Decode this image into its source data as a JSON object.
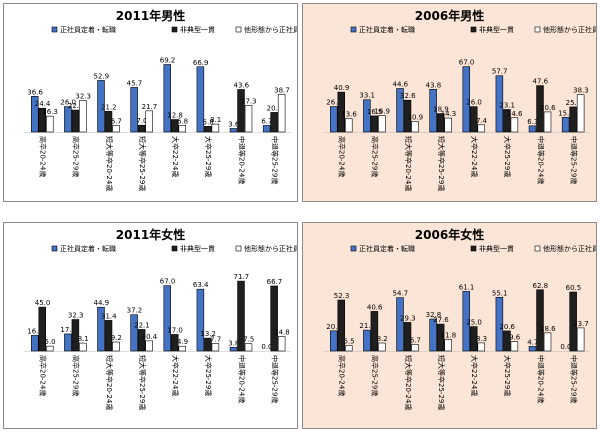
{
  "colors": {
    "series1": "#4472c4",
    "series2": "#1f1f1f",
    "series3": "#ffffff",
    "bar_stroke": "#000000",
    "peach_bg": "#fbe5d6",
    "white_bg": "#ffffff"
  },
  "series_names": [
    "正社員定着・転職",
    "非典型一貫",
    "他形態から正社員"
  ],
  "chart_data": [
    {
      "type": "bar",
      "title": "2011年男性",
      "categories": [
        "高卒20-24歳",
        "高卒25-29歳",
        "短大等卒20-24歳",
        "短大等卒25-29歳",
        "大卒22-24歳",
        "大卒25-29歳",
        "中退等20-24歳",
        "中退等25-29歳"
      ],
      "series": [
        {
          "name": "正社員定着・転職",
          "values": [
            36.6,
            26.0,
            52.9,
            45.7,
            69.2,
            66.9,
            3.6,
            6.7
          ]
        },
        {
          "name": "非典型一貫",
          "values": [
            24.4,
            22.5,
            21.2,
            7.0,
            12.8,
            5.8,
            43.6,
            20.1
          ]
        },
        {
          "name": "他形態から正社員",
          "values": [
            16.3,
            32.3,
            6.7,
            21.7,
            6.8,
            8.1,
            27.3,
            38.7
          ]
        }
      ],
      "ylim": [
        0,
        80
      ],
      "background": "white"
    },
    {
      "type": "bar",
      "title": "2006年男性",
      "categories": [
        "高卒20-24歳",
        "高卒25-29歳",
        "短大等卒20-24歳",
        "短大等卒25-29歳",
        "大卒22-24歳",
        "大卒25-29歳",
        "中退等20-24歳",
        "中退等25-29歳"
      ],
      "series": [
        {
          "name": "正社員定着・転職",
          "values": [
            26.1,
            33.1,
            44.6,
            43.8,
            67.0,
            57.7,
            6.3,
            15.0
          ]
        },
        {
          "name": "非典型一貫",
          "values": [
            40.9,
            16.5,
            32.6,
            18.9,
            26.0,
            23.1,
            47.6,
            25.7
          ]
        },
        {
          "name": "他形態から正社員",
          "values": [
            13.6,
            16.9,
            10.9,
            14.3,
            7.4,
            14.6,
            20.6,
            38.3
          ]
        }
      ],
      "ylim": [
        0,
        80
      ],
      "background": "peach"
    },
    {
      "type": "bar",
      "title": "2011年女性",
      "categories": [
        "高卒20-24歳",
        "高卒25-29歳",
        "短大等卒20-24歳",
        "短大等卒25-29歳",
        "大卒22-24歳",
        "大卒25-29歳",
        "中退等20-24歳",
        "中退等25-29歳"
      ],
      "series": [
        {
          "name": "正社員定着・転職",
          "values": [
            16.0,
            17.5,
            44.9,
            37.2,
            67.0,
            63.4,
            3.8,
            0.0
          ]
        },
        {
          "name": "非典型一貫",
          "values": [
            45.0,
            32.3,
            31.4,
            22.1,
            17.0,
            13.2,
            71.7,
            66.7
          ]
        },
        {
          "name": "他形態から正社員",
          "values": [
            5.0,
            8.1,
            9.2,
            10.4,
            4.9,
            7.7,
            7.5,
            14.8
          ]
        }
      ],
      "ylim": [
        0,
        80
      ],
      "background": "white"
    },
    {
      "type": "bar",
      "title": "2006年女性",
      "categories": [
        "高卒20-24歳",
        "高卒25-29歳",
        "短大等卒20-24歳",
        "短大等卒25-29歳",
        "大卒22-24歳",
        "大卒25-29歳",
        "中退等20-24歳",
        "中退等25-29歳"
      ],
      "series": [
        {
          "name": "正社員定着・転職",
          "values": [
            20.7,
            21.4,
            54.7,
            32.8,
            61.1,
            55.1,
            4.7,
            0.0
          ]
        },
        {
          "name": "非典型一貫",
          "values": [
            52.3,
            40.6,
            29.3,
            27.6,
            25.0,
            20.6,
            62.8,
            60.5
          ]
        },
        {
          "name": "他形態から正社員",
          "values": [
            5.5,
            8.2,
            6.7,
            11.8,
            8.3,
            9.6,
            18.6,
            23.7
          ]
        }
      ],
      "ylim": [
        0,
        80
      ],
      "background": "peach"
    }
  ]
}
